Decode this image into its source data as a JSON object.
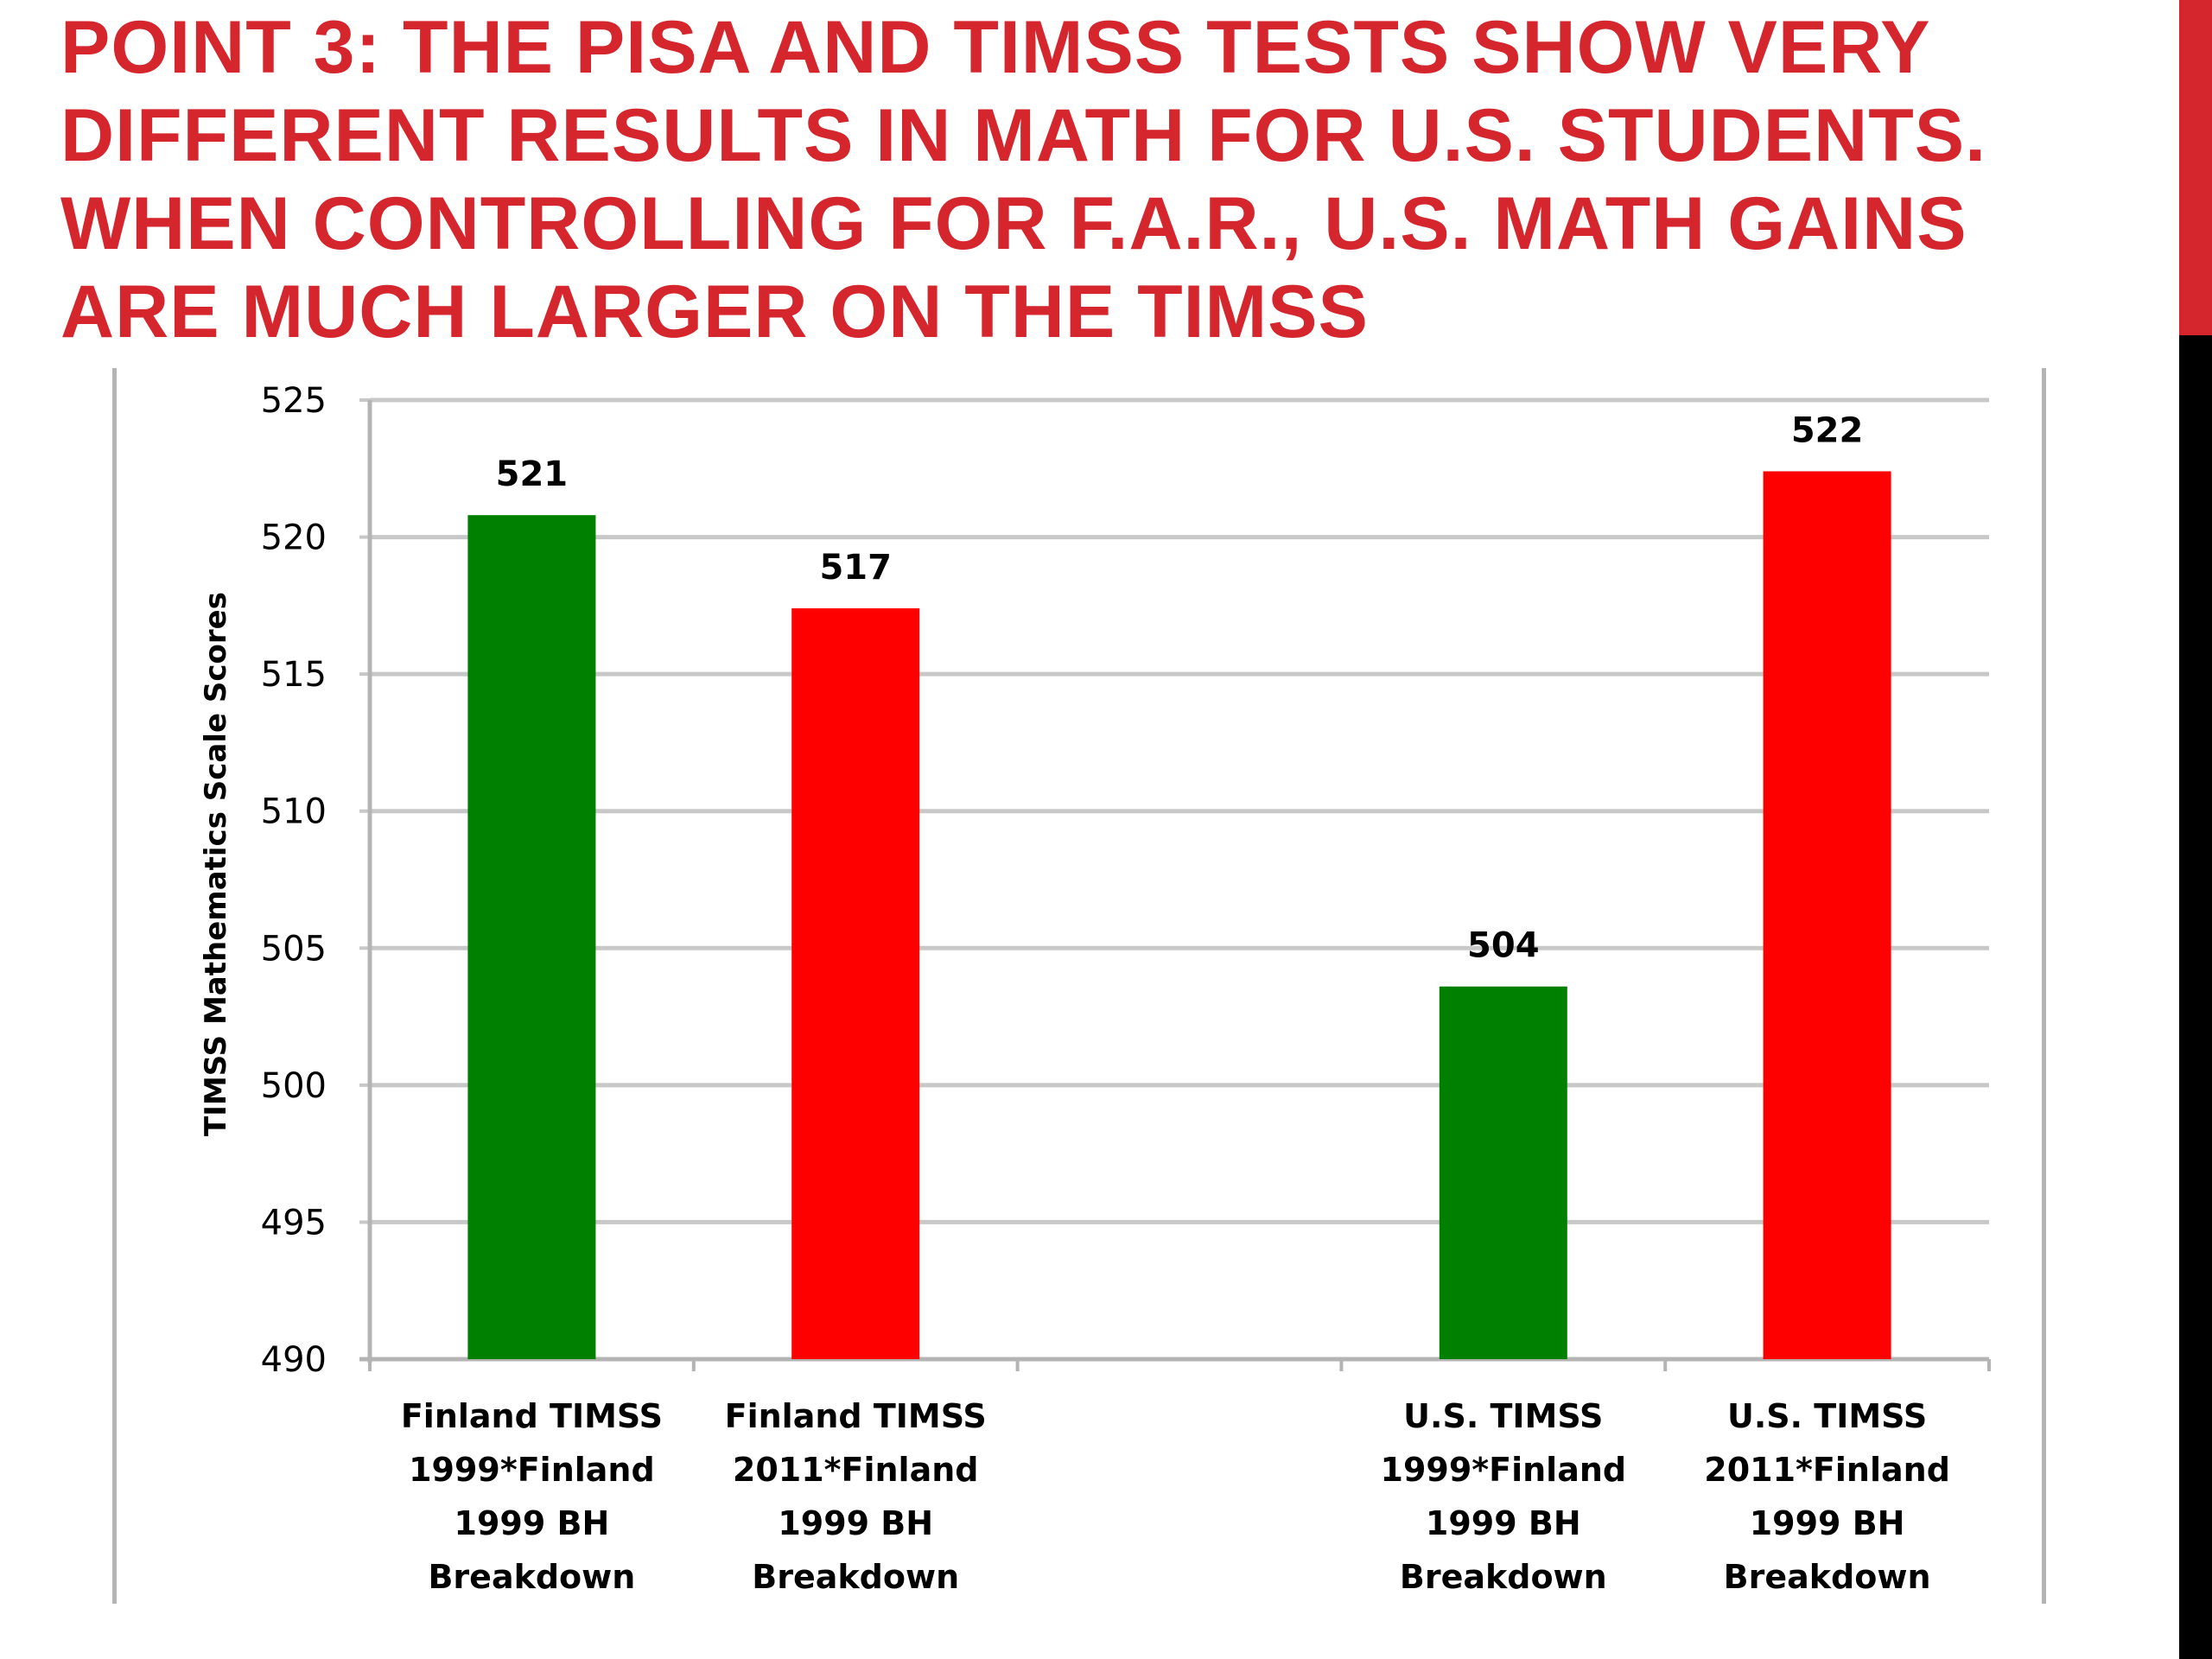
{
  "slide": {
    "title_lines": [
      "Point 3: The PISA and TIMSS tests show very",
      "different results in math for U.S. students.",
      "When controlling for F.A.R., U.S. math gains",
      "are much larger on the TIMSS"
    ]
  },
  "colors": {
    "title": "#d5262e",
    "bar_green": "#008000",
    "bar_red": "#ff0000",
    "gridline": "#c8c8c8",
    "accent_black": "#000000"
  },
  "chart_data": {
    "type": "bar",
    "ylabel": "TIMSS Mathematics Scale Scores",
    "xlabel": "",
    "ylim": [
      490,
      525
    ],
    "y_ticks": [
      "490",
      "495",
      "500",
      "505",
      "510",
      "515",
      "520",
      "525"
    ],
    "grid": true,
    "legend": "none",
    "categories": [
      [
        "Finland TIMSS",
        "1999*Finland",
        "1999 BH",
        "Breakdown"
      ],
      [
        "Finland TIMSS",
        "2011*Finland",
        "1999 BH",
        "Breakdown"
      ],
      [
        "",
        "",
        "",
        ""
      ],
      [
        "U.S. TIMSS",
        "1999*Finland",
        "1999 BH",
        "Breakdown"
      ],
      [
        "U.S. TIMSS",
        "2011*Finland",
        "1999 BH",
        "Breakdown"
      ]
    ],
    "values": [
      520.8,
      517.4,
      null,
      503.6,
      522.4
    ],
    "data_labels": [
      "521",
      "517",
      "",
      "504",
      "522"
    ],
    "bar_colors": [
      "green",
      "red",
      "",
      "green",
      "red"
    ]
  }
}
